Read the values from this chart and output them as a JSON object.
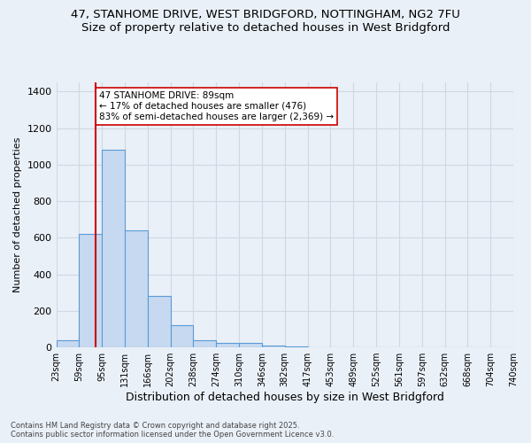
{
  "title_line1": "47, STANHOME DRIVE, WEST BRIDGFORD, NOTTINGHAM, NG2 7FU",
  "title_line2": "Size of property relative to detached houses in West Bridgford",
  "xlabel": "Distribution of detached houses by size in West Bridgford",
  "ylabel": "Number of detached properties",
  "bin_labels": [
    "23sqm",
    "59sqm",
    "95sqm",
    "131sqm",
    "166sqm",
    "202sqm",
    "238sqm",
    "274sqm",
    "310sqm",
    "346sqm",
    "382sqm",
    "417sqm",
    "453sqm",
    "489sqm",
    "525sqm",
    "561sqm",
    "597sqm",
    "632sqm",
    "668sqm",
    "704sqm",
    "740sqm"
  ],
  "bar_values": [
    40,
    620,
    1080,
    640,
    280,
    120,
    40,
    25,
    25,
    10,
    5,
    0,
    0,
    0,
    0,
    0,
    0,
    0,
    0,
    0
  ],
  "bar_color": "#c6d9f0",
  "bar_edge_color": "#5b9bd5",
  "red_line_x": 1.72,
  "annotation_text": "47 STANHOME DRIVE: 89sqm\n← 17% of detached houses are smaller (476)\n83% of semi-detached houses are larger (2,369) →",
  "annotation_box_color": "#ffffff",
  "annotation_box_edge_color": "#cc0000",
  "annotation_text_color": "#000000",
  "red_line_color": "#cc0000",
  "ylim": [
    0,
    1450
  ],
  "yticks": [
    0,
    200,
    400,
    600,
    800,
    1000,
    1200,
    1400
  ],
  "grid_color": "#d0d8e4",
  "background_color": "#eaf0f8",
  "footer_line1": "Contains HM Land Registry data © Crown copyright and database right 2025.",
  "footer_line2": "Contains public sector information licensed under the Open Government Licence v3.0."
}
